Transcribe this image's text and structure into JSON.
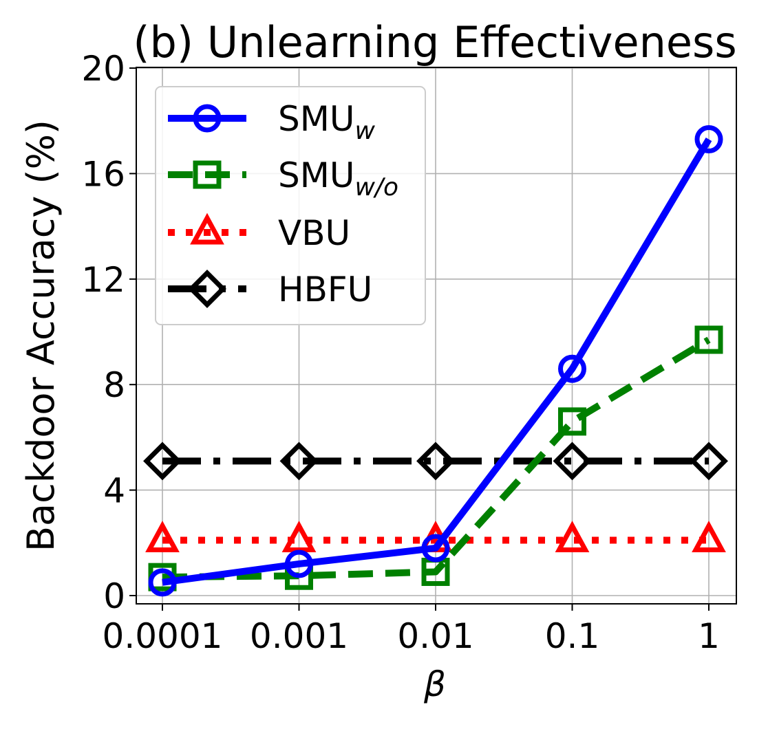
{
  "chart_data": {
    "type": "line",
    "title": "(b) Unlearning Effectiveness",
    "xlabel": "β",
    "ylabel": "Backdoor Accuracy (%)",
    "x_scale": "log",
    "categories": [
      "0.0001",
      "0.001",
      "0.01",
      "0.1",
      "1"
    ],
    "x": [
      0.0001,
      0.001,
      0.01,
      0.1,
      1
    ],
    "ylim": [
      0,
      20
    ],
    "yticks": [
      "0",
      "4",
      "8",
      "12",
      "16",
      "20"
    ],
    "grid": true,
    "legend_position": "top-left",
    "series": [
      {
        "name": "SMU",
        "subscript": "w",
        "values": [
          0.5,
          1.2,
          1.8,
          8.6,
          17.3
        ],
        "color": "#0000ff",
        "dash": "solid",
        "marker": "circle"
      },
      {
        "name": "SMU",
        "subscript": "w/o",
        "values": [
          0.7,
          0.75,
          0.9,
          6.6,
          9.7
        ],
        "color": "#008000",
        "dash": "dashed",
        "marker": "square"
      },
      {
        "name": "VBU",
        "subscript": "",
        "values": [
          2.1,
          2.1,
          2.1,
          2.1,
          2.1
        ],
        "color": "#ff0000",
        "dash": "dotted",
        "marker": "triangle"
      },
      {
        "name": "HBFU",
        "subscript": "",
        "values": [
          5.1,
          5.1,
          5.1,
          5.1,
          5.1
        ],
        "color": "#000000",
        "dash": "dashdot",
        "marker": "diamond"
      }
    ]
  }
}
